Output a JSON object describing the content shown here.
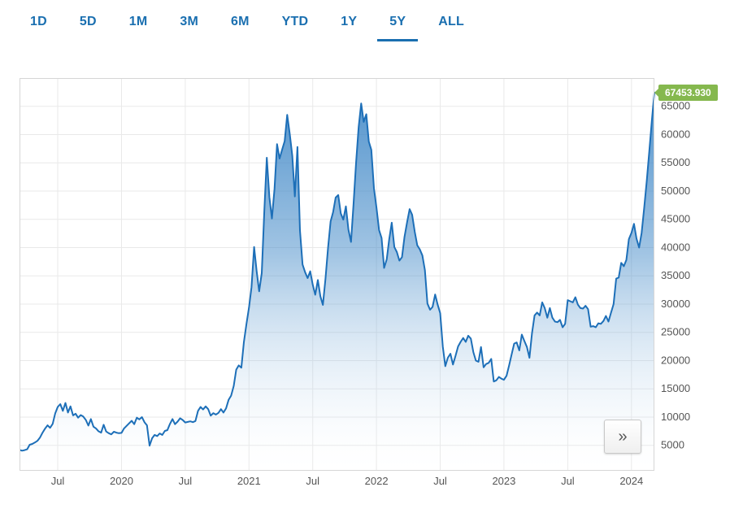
{
  "colors": {
    "accent": "#1a6fb0",
    "line": "#1d6fb8",
    "area_top": "#3d86c6",
    "area_bottom": "#ffffff",
    "badge": "#85b84e",
    "grid": "#e9e9e9",
    "axis_text": "#555555"
  },
  "tabs": {
    "items": [
      {
        "label": "1D",
        "active": false
      },
      {
        "label": "5D",
        "active": false
      },
      {
        "label": "1M",
        "active": false
      },
      {
        "label": "3M",
        "active": false
      },
      {
        "label": "6M",
        "active": false
      },
      {
        "label": "YTD",
        "active": false
      },
      {
        "label": "1Y",
        "active": false
      },
      {
        "label": "5Y",
        "active": true
      },
      {
        "label": "ALL",
        "active": false
      }
    ]
  },
  "controls": {
    "expand_label": "»"
  },
  "badge": {
    "last_price_label": "67453.930"
  },
  "chart_data": {
    "type": "area",
    "title": "",
    "xlabel": "",
    "ylabel": "",
    "x_start": 2019.2,
    "x_end": 2024.18,
    "ylim": [
      500,
      70000
    ],
    "grid": true,
    "y_axis_position": "right",
    "legend": "none",
    "y_ticks": [
      5000,
      10000,
      15000,
      20000,
      25000,
      30000,
      35000,
      40000,
      45000,
      50000,
      55000,
      60000,
      65000
    ],
    "x_ticks": [
      {
        "value": 2019.5,
        "label": "Jul"
      },
      {
        "value": 2020.0,
        "label": "2020"
      },
      {
        "value": 2020.5,
        "label": "Jul"
      },
      {
        "value": 2021.0,
        "label": "2021"
      },
      {
        "value": 2021.5,
        "label": "Jul"
      },
      {
        "value": 2022.0,
        "label": "2022"
      },
      {
        "value": 2022.5,
        "label": "Jul"
      },
      {
        "value": 2023.0,
        "label": "2023"
      },
      {
        "value": 2023.5,
        "label": "Jul"
      },
      {
        "value": 2024.0,
        "label": "2024"
      }
    ],
    "last_value": 67453.93,
    "values": [
      4200,
      4050,
      4150,
      4300,
      5100,
      5250,
      5500,
      5800,
      6350,
      7200,
      7950,
      8550,
      8100,
      8800,
      10650,
      11800,
      12300,
      11100,
      12500,
      10800,
      11900,
      10300,
      10600,
      9900,
      10350,
      10100,
      9500,
      8500,
      9650,
      8300,
      8000,
      7500,
      7250,
      8650,
      7450,
      7150,
      6950,
      7400,
      7250,
      7150,
      7200,
      8000,
      8450,
      8900,
      9350,
      8750,
      9900,
      9600,
      10000,
      9100,
      8550,
      4950,
      6250,
      6850,
      6650,
      7100,
      6850,
      7550,
      7700,
      8800,
      9650,
      8750,
      9200,
      9800,
      9500,
      9050,
      9150,
      9250,
      9100,
      9300,
      11100,
      11800,
      11350,
      11900,
      11400,
      10250,
      10700,
      10450,
      10750,
      11400,
      10800,
      11550,
      13050,
      13800,
      15500,
      18400,
      19150,
      18750,
      23250,
      26500,
      29400,
      33000,
      40100,
      35850,
      32250,
      35500,
      46350,
      55900,
      48900,
      45150,
      50400,
      58300,
      55750,
      57350,
      58850,
      63500,
      60050,
      56200,
      49050,
      57800,
      43050,
      37000,
      35650,
      34600,
      35800,
      33450,
      31650,
      34250,
      31400,
      29850,
      34500,
      39900,
      44650,
      46300,
      48850,
      49300,
      46050,
      44950,
      47300,
      43200,
      41000,
      47700,
      54950,
      61350,
      65500,
      62250,
      63600,
      58750,
      57300,
      50500,
      47100,
      43100,
      41700,
      36400,
      37900,
      41500,
      44400,
      40100,
      39200,
      37700,
      38300,
      41900,
      44500,
      46800,
      45800,
      42800,
      40400,
      39700,
      38600,
      36000,
      30100,
      29000,
      29500,
      31700,
      29900,
      28400,
      22500,
      19000,
      20500,
      21200,
      19300,
      20800,
      22500,
      23300,
      24000,
      23300,
      24400,
      23900,
      21500,
      20000,
      19800,
      22400,
      18800,
      19400,
      19600,
      20300,
      16300,
      16500,
      17100,
      16800,
      16600,
      17300,
      19100,
      21100,
      23000,
      23200,
      21800,
      24600,
      23500,
      22400,
      20500,
      24800,
      28000,
      28500,
      28000,
      30300,
      29300,
      27600,
      29300,
      27600,
      26900,
      26800,
      27200,
      25900,
      26500,
      30700,
      30500,
      30300,
      31200,
      29900,
      29300,
      29200,
      29700,
      29100,
      26000,
      26100,
      25900,
      26600,
      26500,
      27000,
      27900,
      26900,
      28500,
      30000,
      34500,
      34700,
      37300,
      36700,
      37800,
      41500,
      42600,
      44200,
      41600,
      40000,
      42600,
      47100,
      51800,
      57000,
      62500,
      67453.93
    ]
  }
}
